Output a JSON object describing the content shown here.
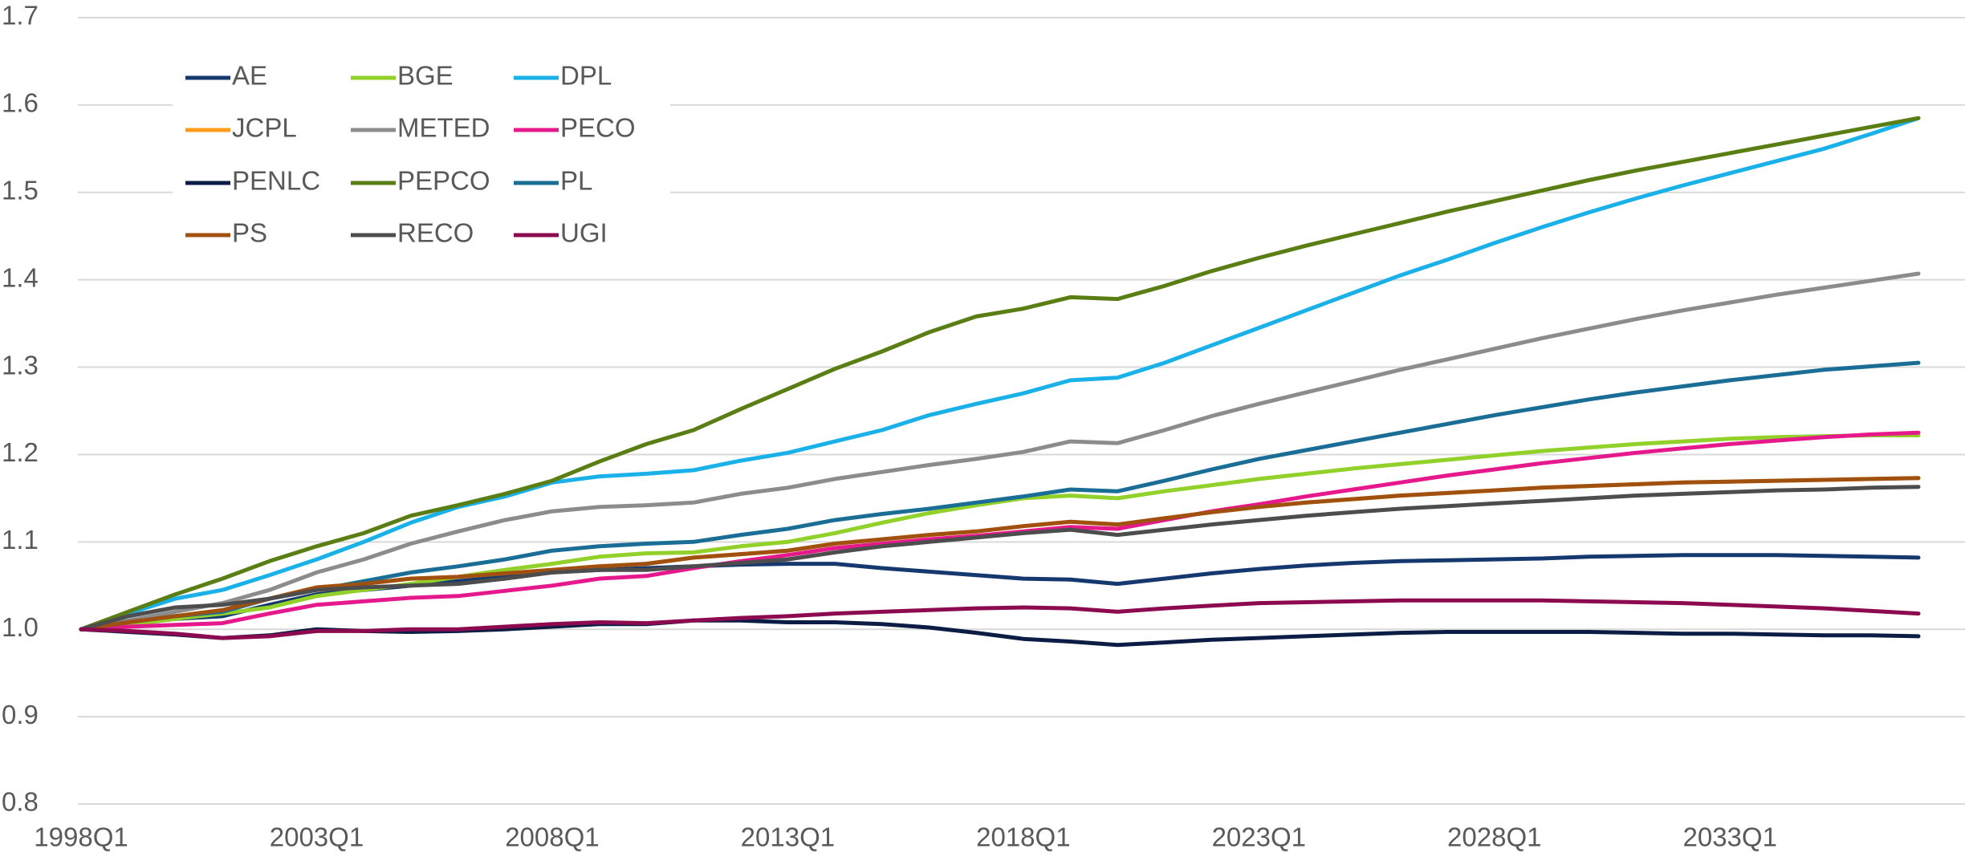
{
  "chart_data": {
    "type": "line",
    "categories": [
      "1998Q1",
      null,
      null,
      null,
      null,
      "2003Q1",
      null,
      null,
      null,
      null,
      "2008Q1",
      null,
      null,
      null,
      null,
      "2013Q1",
      null,
      null,
      null,
      null,
      "2018Q1",
      null,
      null,
      null,
      null,
      "2023Q1",
      null,
      null,
      null,
      null,
      "2028Q1",
      null,
      null,
      null,
      null,
      "2033Q1",
      null,
      null,
      null,
      null
    ],
    "ylim": [
      0.8,
      1.7
    ],
    "yticks": [
      0.8,
      0.9,
      {
        "value": 1,
        "label": "1.0"
      },
      1.1,
      1.2,
      1.3,
      1.4,
      1.5,
      1.6,
      1.7
    ],
    "grid": true,
    "legend": "top-left",
    "series": [
      {
        "name": "AE",
        "color": "#15396e",
        "values": [
          1.0,
          1.005,
          1.012,
          1.015,
          1.028,
          1.04,
          1.045,
          1.05,
          1.055,
          1.06,
          1.065,
          1.068,
          1.07,
          1.072,
          1.074,
          1.075,
          1.075,
          1.07,
          1.066,
          1.062,
          1.058,
          1.057,
          1.052,
          1.058,
          1.064,
          1.069,
          1.073,
          1.076,
          1.078,
          1.079,
          1.08,
          1.081,
          1.083,
          1.084,
          1.085,
          1.085,
          1.085,
          1.084,
          1.083,
          1.082
        ]
      },
      {
        "name": "BGE",
        "color": "#92d02a",
        "values": [
          1.0,
          1.005,
          1.012,
          1.018,
          1.025,
          1.038,
          1.045,
          1.052,
          1.06,
          1.068,
          1.075,
          1.083,
          1.087,
          1.088,
          1.095,
          1.1,
          1.11,
          1.122,
          1.133,
          1.142,
          1.15,
          1.153,
          1.15,
          1.158,
          1.165,
          1.172,
          1.178,
          1.184,
          1.189,
          1.194,
          1.199,
          1.204,
          1.208,
          1.212,
          1.215,
          1.218,
          1.22,
          1.221,
          1.222,
          1.222
        ]
      },
      {
        "name": "DPL",
        "color": "#1ab0e8",
        "values": [
          1.0,
          1.018,
          1.035,
          1.045,
          1.062,
          1.08,
          1.1,
          1.122,
          1.14,
          1.152,
          1.168,
          1.175,
          1.178,
          1.182,
          1.193,
          1.202,
          1.215,
          1.228,
          1.245,
          1.258,
          1.27,
          1.285,
          1.288,
          1.305,
          1.325,
          1.345,
          1.365,
          1.385,
          1.405,
          1.423,
          1.442,
          1.46,
          1.477,
          1.493,
          1.508,
          1.522,
          1.536,
          1.55,
          1.567,
          1.585
        ]
      },
      {
        "name": "JCPL",
        "color": "#ff9a1a",
        "values": [
          1.0,
          1.008,
          1.015,
          1.022,
          1.035,
          1.048,
          1.052,
          1.058,
          1.06,
          1.064,
          1.068,
          1.072,
          1.075,
          1.082,
          1.086,
          1.09,
          1.098,
          1.103,
          1.108,
          1.112,
          1.118,
          1.123,
          1.12,
          1.127,
          1.134,
          1.14,
          1.145,
          1.149,
          1.153,
          1.156,
          1.159,
          1.162,
          1.164,
          1.166,
          1.168,
          1.169,
          1.17,
          1.171,
          1.172,
          1.173
        ]
      },
      {
        "name": "METED",
        "color": "#8c8c8c",
        "values": [
          1.0,
          1.01,
          1.02,
          1.03,
          1.045,
          1.065,
          1.08,
          1.098,
          1.112,
          1.125,
          1.135,
          1.14,
          1.142,
          1.145,
          1.155,
          1.162,
          1.172,
          1.18,
          1.188,
          1.195,
          1.203,
          1.215,
          1.213,
          1.228,
          1.244,
          1.258,
          1.271,
          1.284,
          1.297,
          1.309,
          1.321,
          1.333,
          1.344,
          1.355,
          1.365,
          1.374,
          1.383,
          1.391,
          1.399,
          1.407
        ]
      },
      {
        "name": "PECO",
        "color": "#e6198c",
        "values": [
          1.0,
          1.003,
          1.005,
          1.007,
          1.018,
          1.028,
          1.032,
          1.036,
          1.038,
          1.044,
          1.05,
          1.058,
          1.061,
          1.07,
          1.078,
          1.085,
          1.093,
          1.098,
          1.103,
          1.107,
          1.112,
          1.117,
          1.115,
          1.125,
          1.135,
          1.143,
          1.152,
          1.16,
          1.168,
          1.176,
          1.183,
          1.19,
          1.196,
          1.202,
          1.207,
          1.212,
          1.216,
          1.22,
          1.223,
          1.225
        ]
      },
      {
        "name": "PENLC",
        "color": "#0b1d45",
        "values": [
          1.0,
          0.997,
          0.994,
          0.99,
          0.993,
          1.0,
          0.998,
          0.997,
          0.998,
          1.0,
          1.003,
          1.006,
          1.006,
          1.01,
          1.01,
          1.008,
          1.008,
          1.006,
          1.002,
          0.996,
          0.989,
          0.986,
          0.982,
          0.985,
          0.988,
          0.99,
          0.992,
          0.994,
          0.996,
          0.997,
          0.997,
          0.997,
          0.997,
          0.996,
          0.995,
          0.995,
          0.994,
          0.993,
          0.993,
          0.992
        ]
      },
      {
        "name": "PEPCO",
        "color": "#5a7d14",
        "values": [
          1.0,
          1.02,
          1.04,
          1.058,
          1.078,
          1.095,
          1.11,
          1.13,
          1.142,
          1.155,
          1.17,
          1.192,
          1.212,
          1.228,
          1.252,
          1.275,
          1.298,
          1.318,
          1.34,
          1.358,
          1.367,
          1.38,
          1.378,
          1.393,
          1.41,
          1.425,
          1.439,
          1.452,
          1.465,
          1.478,
          1.49,
          1.502,
          1.514,
          1.525,
          1.535,
          1.545,
          1.555,
          1.565,
          1.575,
          1.585
        ]
      },
      {
        "name": "PL",
        "color": "#1a6e96",
        "values": [
          1.0,
          1.008,
          1.015,
          1.02,
          1.035,
          1.045,
          1.055,
          1.065,
          1.072,
          1.08,
          1.09,
          1.095,
          1.098,
          1.1,
          1.108,
          1.115,
          1.125,
          1.132,
          1.138,
          1.145,
          1.152,
          1.16,
          1.158,
          1.17,
          1.183,
          1.195,
          1.205,
          1.215,
          1.225,
          1.235,
          1.245,
          1.254,
          1.263,
          1.271,
          1.278,
          1.285,
          1.291,
          1.297,
          1.301,
          1.305
        ]
      },
      {
        "name": "PS",
        "color": "#a0500f",
        "values": [
          1.0,
          1.008,
          1.015,
          1.022,
          1.035,
          1.048,
          1.052,
          1.058,
          1.06,
          1.064,
          1.068,
          1.072,
          1.075,
          1.082,
          1.086,
          1.09,
          1.098,
          1.103,
          1.108,
          1.112,
          1.118,
          1.123,
          1.12,
          1.127,
          1.134,
          1.14,
          1.145,
          1.149,
          1.153,
          1.156,
          1.159,
          1.162,
          1.164,
          1.166,
          1.168,
          1.169,
          1.17,
          1.171,
          1.172,
          1.173
        ]
      },
      {
        "name": "RECO",
        "color": "#4d4d4d",
        "values": [
          1.0,
          1.015,
          1.025,
          1.028,
          1.035,
          1.045,
          1.048,
          1.05,
          1.052,
          1.058,
          1.065,
          1.068,
          1.068,
          1.072,
          1.076,
          1.08,
          1.088,
          1.095,
          1.1,
          1.105,
          1.11,
          1.114,
          1.108,
          1.114,
          1.12,
          1.125,
          1.13,
          1.134,
          1.138,
          1.141,
          1.144,
          1.147,
          1.15,
          1.153,
          1.155,
          1.157,
          1.159,
          1.16,
          1.162,
          1.163
        ]
      },
      {
        "name": "UGI",
        "color": "#8c0a50",
        "values": [
          1.0,
          0.998,
          0.995,
          0.99,
          0.992,
          0.998,
          0.998,
          1.0,
          1.0,
          1.003,
          1.006,
          1.008,
          1.007,
          1.01,
          1.013,
          1.015,
          1.018,
          1.02,
          1.022,
          1.024,
          1.025,
          1.024,
          1.02,
          1.024,
          1.027,
          1.03,
          1.031,
          1.032,
          1.033,
          1.033,
          1.033,
          1.033,
          1.032,
          1.031,
          1.03,
          1.028,
          1.026,
          1.024,
          1.021,
          1.018
        ]
      }
    ]
  }
}
